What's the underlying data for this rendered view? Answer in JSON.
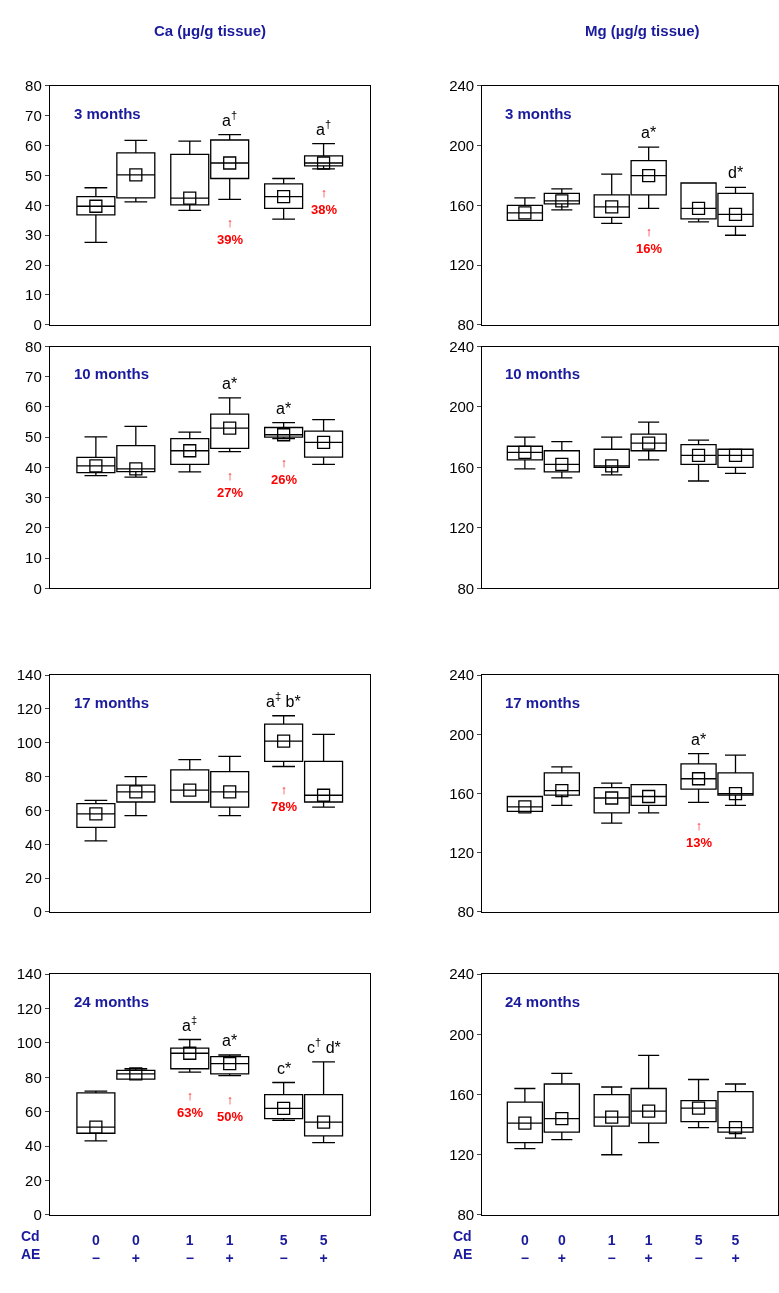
{
  "chart_data": [
    {
      "type": "box",
      "marker": "square",
      "title": "3 months",
      "ylabel": "Ca (µg/g tissue)",
      "categories": [
        "0\n−",
        "0\n+",
        "1\n−",
        "1\n+",
        "5\n−",
        "5\n+"
      ],
      "ylim": [
        0,
        80
      ],
      "yticks": [
        0,
        10,
        20,
        30,
        40,
        50,
        60,
        70,
        80
      ],
      "tick_labels": "y",
      "boxes": [
        {
          "low": 27.6,
          "q1": 36.8,
          "median": 39.7,
          "mean": 39.7,
          "q3": 42.9,
          "high": 45.9
        },
        {
          "low": 41.2,
          "q1": 42.5,
          "median": 50.2,
          "mean": 50.2,
          "q3": 57.6,
          "high": 61.8
        },
        {
          "low": 38.3,
          "q1": 40.2,
          "median": 42.4,
          "mean": 42.4,
          "q3": 57.1,
          "high": 61.5
        },
        {
          "low": 42,
          "q1": 49,
          "median": 54.2,
          "mean": 54.2,
          "q3": 61.9,
          "high": 63.7
        },
        {
          "low": 35.4,
          "q1": 39,
          "median": 42.9,
          "mean": 42.9,
          "q3": 47.2,
          "high": 49
        },
        {
          "low": 52.2,
          "q1": 53.2,
          "median": 54.2,
          "mean": 54.2,
          "q3": 56.6,
          "high": 60.7
        }
      ],
      "annotations": [
        {
          "text": "a$^{†}$",
          "x": "1\n+",
          "y": 63.7
        },
        {
          "text": "↑\n39%",
          "x": "1\n+",
          "y": 42
        },
        {
          "text": "a$^{†}$",
          "x": "5\n+",
          "y": 60.7
        },
        {
          "text": "↑\n38%",
          "x": "5\n+",
          "y": 52.2
        }
      ]
    },
    {
      "type": "box",
      "marker": "square",
      "title": "3 months",
      "ylabel": "Mg (µg/g tissue)",
      "categories": [
        "0\n−",
        "0\n+",
        "1\n−",
        "1\n+",
        "5\n−",
        "5\n+"
      ],
      "ylim": [
        80,
        240
      ],
      "yticks": [
        80,
        120,
        160,
        200,
        240
      ],
      "tick_labels": "y",
      "boxes": [
        {
          "low": 150,
          "q1": 150,
          "median": 155,
          "mean": 155,
          "q3": 160,
          "high": 165
        },
        {
          "low": 157,
          "q1": 161,
          "median": 163,
          "mean": 163,
          "q3": 168,
          "high": 171
        },
        {
          "low": 148,
          "q1": 152,
          "median": 159,
          "mean": 159,
          "q3": 167,
          "high": 181
        },
        {
          "low": 158,
          "q1": 167,
          "median": 180,
          "mean": 180,
          "q3": 190,
          "high": 199
        },
        {
          "low": 149,
          "q1": 151,
          "median": 158,
          "mean": 158,
          "q3": 175,
          "high": 175
        },
        {
          "low": 140,
          "q1": 146,
          "median": 154,
          "mean": 154,
          "q3": 168,
          "high": 172
        }
      ],
      "annotations": [
        {
          "text": "a*",
          "x": "1\n+",
          "y": 199
        },
        {
          "text": "↑\n16%",
          "x": "1\n+",
          "y": 158
        },
        {
          "text": "d*",
          "x": "5\n+",
          "y": 172
        }
      ]
    },
    {
      "type": "box",
      "marker": "square",
      "title": "10 months",
      "categories": [
        "0\n−",
        "0\n+",
        "1\n−",
        "1\n+",
        "5\n−",
        "5\n+"
      ],
      "ylim": [
        0,
        80
      ],
      "yticks": [
        0,
        10,
        20,
        30,
        40,
        50,
        60,
        70,
        80
      ],
      "tick_labels": "y",
      "boxes": [
        {
          "low": 37.3,
          "q1": 38.3,
          "median": 40.5,
          "mean": 40.5,
          "q3": 43.3,
          "high": 50.1
        },
        {
          "low": 36.8,
          "q1": 38.6,
          "median": 39.5,
          "mean": 39.5,
          "q3": 47.2,
          "high": 53.6
        },
        {
          "low": 38.5,
          "q1": 41,
          "median": 45.5,
          "mean": 45.5,
          "q3": 49.5,
          "high": 51.7
        },
        {
          "low": 45.2,
          "q1": 46.3,
          "median": 53,
          "mean": 53,
          "q3": 57.6,
          "high": 63
        },
        {
          "low": 49.5,
          "q1": 50,
          "median": 50.8,
          "mean": 50.8,
          "q3": 53.2,
          "high": 54.8
        },
        {
          "low": 41,
          "q1": 43.4,
          "median": 48.3,
          "mean": 48.3,
          "q3": 52,
          "high": 55.8
        }
      ],
      "annotations": [
        {
          "text": "a*",
          "x": "1\n+",
          "y": 63
        },
        {
          "text": "↑\n27%",
          "x": "1\n+",
          "y": 45.2
        },
        {
          "text": "a*",
          "x": "5\n−",
          "y": 54.8
        },
        {
          "text": "↑\n26%",
          "x": "5\n−",
          "y": 49.5
        }
      ]
    },
    {
      "type": "box",
      "marker": "square",
      "title": "10 months",
      "categories": [
        "0\n−",
        "0\n+",
        "1\n−",
        "1\n+",
        "5\n−",
        "5\n+"
      ],
      "ylim": [
        80,
        240
      ],
      "yticks": [
        80,
        120,
        160,
        200,
        240
      ],
      "tick_labels": "y",
      "boxes": [
        {
          "low": 159,
          "q1": 165,
          "median": 170,
          "mean": 170,
          "q3": 174,
          "high": 180
        },
        {
          "low": 153,
          "q1": 157,
          "median": 162,
          "mean": 162,
          "q3": 171,
          "high": 177
        },
        {
          "low": 155,
          "q1": 160,
          "median": 161,
          "mean": 161,
          "q3": 172,
          "high": 180
        },
        {
          "low": 165,
          "q1": 171,
          "median": 176,
          "mean": 176,
          "q3": 182,
          "high": 190
        },
        {
          "low": 151,
          "q1": 162,
          "median": 168,
          "mean": 168,
          "q3": 175,
          "high": 178
        },
        {
          "low": 156,
          "q1": 160,
          "median": 168,
          "mean": 168,
          "q3": 172,
          "high": 172
        }
      ]
    },
    {
      "type": "box",
      "marker": "square",
      "title": "17 months",
      "categories": [
        "0\n−",
        "0\n+",
        "1\n−",
        "1\n+",
        "5\n−",
        "5\n+"
      ],
      "ylim": [
        0,
        140
      ],
      "yticks": [
        0,
        20,
        40,
        60,
        80,
        100,
        120,
        140
      ],
      "tick_labels": "y",
      "boxes": [
        {
          "low": 42,
          "q1": 50,
          "median": 58,
          "mean": 58,
          "q3": 64,
          "high": 66
        },
        {
          "low": 57,
          "q1": 65,
          "median": 71,
          "mean": 71,
          "q3": 75,
          "high": 80
        },
        {
          "low": 65,
          "q1": 65,
          "median": 72,
          "mean": 72,
          "q3": 84,
          "high": 90
        },
        {
          "low": 57,
          "q1": 62,
          "median": 71,
          "mean": 71,
          "q3": 83,
          "high": 92
        },
        {
          "low": 86,
          "q1": 89,
          "median": 101,
          "mean": 101,
          "q3": 111,
          "high": 116
        },
        {
          "low": 62,
          "q1": 65,
          "median": 69,
          "mean": 69,
          "q3": 89,
          "high": 105
        }
      ],
      "annotations": [
        {
          "text": "a$^{‡}$ b*",
          "x": "5\n−",
          "y": 116
        },
        {
          "text": "↑\n78%",
          "x": "5\n−",
          "y": 86
        }
      ]
    },
    {
      "type": "box",
      "marker": "square",
      "title": "17 months",
      "categories": [
        "0\n−",
        "0\n+",
        "1\n−",
        "1\n+",
        "5\n−",
        "5\n+"
      ],
      "ylim": [
        80,
        240
      ],
      "yticks": [
        80,
        120,
        160,
        200,
        240
      ],
      "tick_labels": "y",
      "boxes": [
        {
          "low": 148,
          "q1": 148,
          "median": 151,
          "mean": 151,
          "q3": 158,
          "high": 158
        },
        {
          "low": 152,
          "q1": 159,
          "median": 162,
          "mean": 162,
          "q3": 174,
          "high": 178
        },
        {
          "low": 140,
          "q1": 147,
          "median": 157,
          "mean": 157,
          "q3": 164,
          "high": 167
        },
        {
          "low": 147,
          "q1": 152,
          "median": 158,
          "mean": 158,
          "q3": 166,
          "high": 166
        },
        {
          "low": 154,
          "q1": 163,
          "median": 170,
          "mean": 170,
          "q3": 180,
          "high": 187
        },
        {
          "low": 152,
          "q1": 159,
          "median": 160,
          "mean": 160,
          "q3": 174,
          "high": 186
        }
      ],
      "annotations": [
        {
          "text": "a*",
          "x": "5\n−",
          "y": 187
        },
        {
          "text": "↑\n13%",
          "x": "5\n−",
          "y": 154
        }
      ]
    },
    {
      "type": "box",
      "marker": "square",
      "title": "24 months",
      "categories": [
        "0\n−",
        "0\n+",
        "1\n−",
        "1\n+",
        "5\n−",
        "5\n+"
      ],
      "ylim": [
        0,
        140
      ],
      "yticks": [
        0,
        20,
        40,
        60,
        80,
        100,
        120,
        140
      ],
      "boxes": [
        {
          "low": 43,
          "q1": 47.5,
          "median": 51,
          "mean": 51,
          "q3": 71,
          "high": 72
        },
        {
          "low": 79,
          "q1": 79,
          "median": 82,
          "mean": 82,
          "q3": 84,
          "high": 85
        },
        {
          "low": 83,
          "q1": 85,
          "median": 94,
          "mean": 94,
          "q3": 97,
          "high": 102
        },
        {
          "low": 81,
          "q1": 82,
          "median": 88,
          "mean": 88,
          "q3": 92,
          "high": 93
        },
        {
          "low": 55,
          "q1": 56,
          "median": 62,
          "mean": 62,
          "q3": 70,
          "high": 77
        },
        {
          "low": 42,
          "q1": 46,
          "median": 54,
          "mean": 54,
          "q3": 70,
          "high": 89
        }
      ],
      "annotations": [
        "Cd",
        "AE",
        {
          "text": "a$^{‡}$",
          "x": "1\n−",
          "y": 102
        },
        {
          "text": "a*",
          "x": "1\n+",
          "y": 93
        },
        {
          "text": "c*",
          "x": "5\n−",
          "y": 77
        },
        {
          "text": "c$^{†}$ d*",
          "x": "5\n+",
          "y": 89
        },
        {
          "text": "↑\n63%",
          "x": "1\n−",
          "y": 83
        },
        {
          "text": "↑\n50%",
          "x": "1\n+",
          "y": 81
        }
      ]
    },
    {
      "type": "box",
      "marker": "square",
      "title": "24 months",
      "categories": [
        "0\n−",
        "0\n+",
        "1\n−",
        "1\n+",
        "5\n−",
        "5\n+"
      ],
      "ylim": [
        80,
        240
      ],
      "yticks": [
        80,
        120,
        160,
        200,
        240
      ],
      "boxes": [
        {
          "low": 124,
          "q1": 128,
          "median": 141,
          "mean": 141,
          "q3": 155,
          "high": 164
        },
        {
          "low": 130,
          "q1": 135,
          "median": 144,
          "mean": 144,
          "q3": 167,
          "high": 174
        },
        {
          "low": 120,
          "q1": 139,
          "median": 145,
          "mean": 145,
          "q3": 160,
          "high": 165
        },
        {
          "low": 128,
          "q1": 141,
          "median": 149,
          "mean": 149,
          "q3": 164,
          "high": 186
        },
        {
          "low": 138,
          "q1": 142,
          "median": 151,
          "mean": 151,
          "q3": 156,
          "high": 170
        },
        {
          "low": 131,
          "q1": 135,
          "median": 138,
          "mean": 138,
          "q3": 162,
          "high": 167
        }
      ],
      "annotations": [
        "Cd",
        "AE"
      ]
    }
  ]
}
